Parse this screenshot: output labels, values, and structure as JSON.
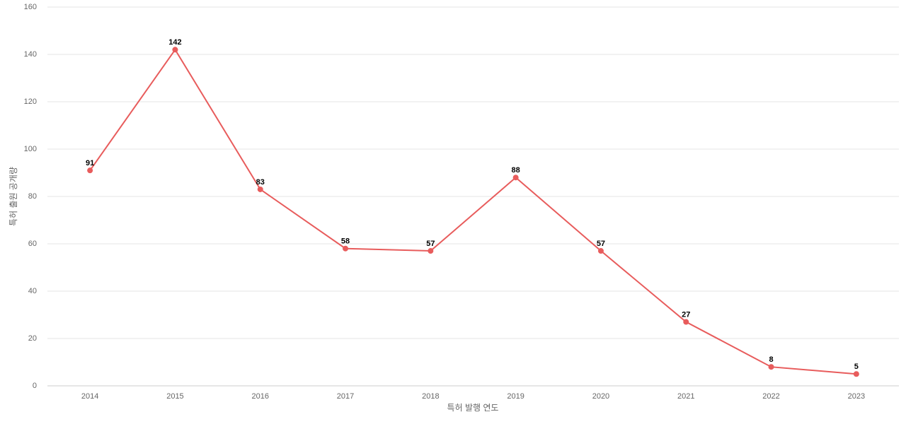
{
  "chart_data": {
    "type": "line",
    "x_label": "특허 발행 연도",
    "y_label": "특허 출원 공개량",
    "categories": [
      "2014",
      "2015",
      "2016",
      "2017",
      "2018",
      "2019",
      "2020",
      "2021",
      "2022",
      "2023"
    ],
    "values": [
      91,
      142,
      83,
      58,
      57,
      88,
      57,
      27,
      8,
      5
    ],
    "color": "#e85c5c",
    "ylim": [
      0,
      160
    ],
    "yticks": [
      0,
      20,
      40,
      60,
      80,
      100,
      120,
      140,
      160
    ],
    "grid": true
  }
}
